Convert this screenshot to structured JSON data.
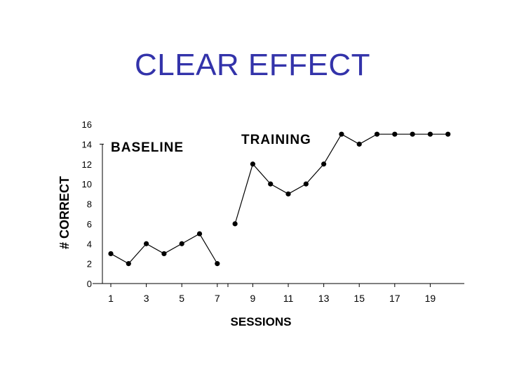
{
  "slide": {
    "title": "CLEAR EFFECT"
  },
  "chart_data": {
    "type": "line",
    "title": "",
    "xlabel": "SESSIONS",
    "ylabel": "# CORRECT",
    "xlim": [
      0,
      20
    ],
    "ylim": [
      0,
      16
    ],
    "x_ticks": [
      1,
      3,
      5,
      7,
      9,
      11,
      13,
      15,
      17,
      19
    ],
    "y_ticks": [
      0,
      2,
      4,
      6,
      8,
      10,
      12,
      14,
      16
    ],
    "grid": false,
    "legend": "none",
    "phase_labels": [
      "BASELINE",
      "TRAINING"
    ],
    "series": [
      {
        "points": [
          [
            1,
            3
          ],
          [
            2,
            2
          ],
          [
            3,
            4
          ],
          [
            4,
            3
          ],
          [
            5,
            4
          ],
          [
            6,
            5
          ],
          [
            7,
            2
          ]
        ]
      },
      {
        "points": [
          [
            8,
            6
          ],
          [
            9,
            12
          ],
          [
            10,
            10
          ],
          [
            11,
            9
          ],
          [
            12,
            10
          ],
          [
            13,
            12
          ],
          [
            14,
            15
          ],
          [
            15,
            14
          ],
          [
            16,
            15
          ],
          [
            17,
            15
          ],
          [
            18,
            15
          ],
          [
            19,
            15
          ],
          [
            20,
            15
          ]
        ]
      }
    ]
  }
}
